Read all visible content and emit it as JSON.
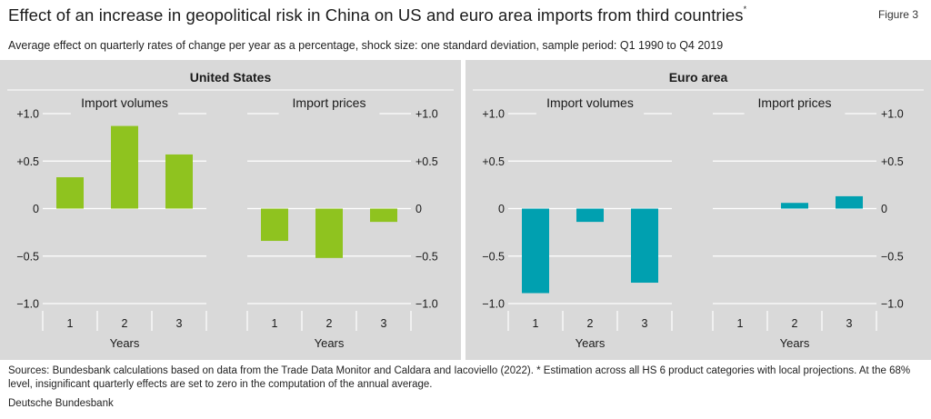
{
  "figure": {
    "title": "Effect of an increase in geopolitical risk in China on US and euro area imports from third countries",
    "title_marker": "*",
    "label": "Figure 3",
    "subtitle": "Average effect on quarterly rates of change per year as a percentage, shock size: one standard deviation, sample period: Q1 1990 to Q4 2019",
    "footnote": "Sources: Bundesbank calculations based on data from the Trade Data Monitor and Caldara and Iacoviello (2022). * Estimation across all HS 6 product categories with local projections. At the 68% level, insignificant quarterly effects are set to zero in the computation of the annual average.",
    "source": "Deutsche Bundesbank"
  },
  "colors": {
    "background_panel": "#d9d9d9",
    "us_bars": "#8fc31f",
    "euro_bars": "#00a0b0",
    "gridline": "#ffffff"
  },
  "chart_data": [
    {
      "type": "bar",
      "region": "United States",
      "title": "Import volumes",
      "xlabel": "Years",
      "categories": [
        "1",
        "2",
        "3"
      ],
      "values": [
        0.33,
        0.87,
        0.57
      ],
      "ylim": [
        -1.0,
        1.0
      ],
      "yticks": [
        "+1.0",
        "+0.5",
        "0",
        "−0.5",
        "−1.0"
      ],
      "axis_side": "left",
      "grid": true
    },
    {
      "type": "bar",
      "region": "United States",
      "title": "Import prices",
      "xlabel": "Years",
      "categories": [
        "1",
        "2",
        "3"
      ],
      "values": [
        -0.34,
        -0.52,
        -0.14
      ],
      "ylim": [
        -1.0,
        1.0
      ],
      "yticks": [
        "+1.0",
        "+0.5",
        "0",
        "−0.5",
        "−1.0"
      ],
      "axis_side": "right",
      "grid": true
    },
    {
      "type": "bar",
      "region": "Euro area",
      "title": "Import volumes",
      "xlabel": "Years",
      "categories": [
        "1",
        "2",
        "3"
      ],
      "values": [
        -0.89,
        -0.14,
        -0.78
      ],
      "ylim": [
        -1.0,
        1.0
      ],
      "yticks": [
        "+1.0",
        "+0.5",
        "0",
        "−0.5",
        "−1.0"
      ],
      "axis_side": "left",
      "grid": true
    },
    {
      "type": "bar",
      "region": "Euro area",
      "title": "Import prices",
      "xlabel": "Years",
      "categories": [
        "1",
        "2",
        "3"
      ],
      "values": [
        0.0,
        0.06,
        0.13
      ],
      "ylim": [
        -1.0,
        1.0
      ],
      "yticks": [
        "+1.0",
        "+0.5",
        "0",
        "−0.5",
        "−1.0"
      ],
      "axis_side": "right",
      "grid": true
    }
  ]
}
